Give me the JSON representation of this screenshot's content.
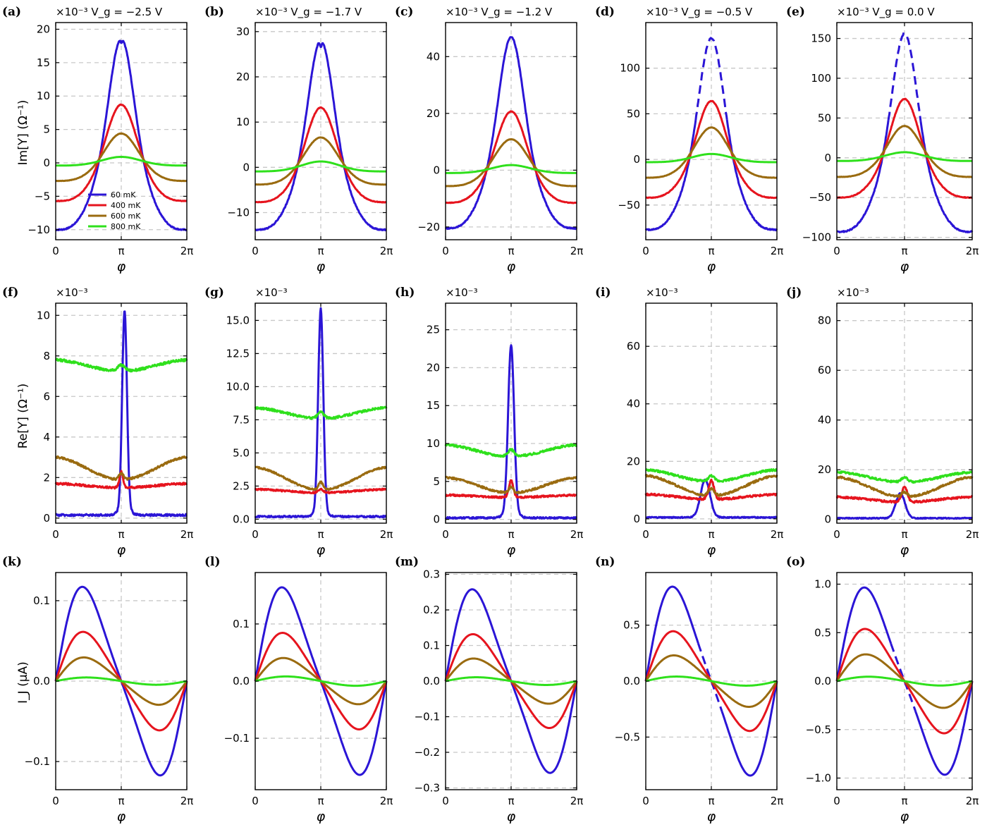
{
  "figure": {
    "row_ylabels": [
      "Im[Y] (Ω⁻¹)",
      "Re[Y] (Ω⁻¹)",
      "I_J (μA)"
    ],
    "multiplier": "×10⁻³"
  },
  "colors": {
    "60 mK": "#2b15d6",
    "400 mK": "#e6141e",
    "600 mK": "#9a6b10",
    "800 mK": "#2fe01c",
    "grid": "#c8c8c8"
  },
  "legend": {
    "entries": [
      "60 mK",
      "400 mK",
      "600 mK",
      "800 mK"
    ]
  },
  "chart_data": [
    {
      "panel": "(a)",
      "row": 0,
      "col": 0,
      "type": "line",
      "note": "×10⁻³ V_g = −2.5 V",
      "vg": "−2.5",
      "ylim": [
        -11.5,
        21
      ],
      "yticks": [
        -10,
        -5,
        0,
        5,
        10,
        15,
        20
      ],
      "ytick_labels": [
        "−10",
        "−5",
        "0",
        "5",
        "10",
        "15",
        "20"
      ],
      "xlim": [
        0,
        6.2832
      ],
      "xticks": [
        "0",
        "π",
        "2π"
      ],
      "xlabel": "φ",
      "ylabel": "Im[Y] (Ω⁻¹)",
      "legend": "lower-left",
      "series": [
        {
          "name": "60 mK",
          "shape": "peak",
          "min": -10,
          "peak": 18.6,
          "width": 0.62,
          "plateau": 0.06,
          "dip": 0.6,
          "dashed": false
        },
        {
          "name": "400 mK",
          "shape": "peak",
          "min": -5.7,
          "peak": 8.7,
          "width": 0.75,
          "plateau": 0.05,
          "dip": 0,
          "dashed": false
        },
        {
          "name": "600 mK",
          "shape": "peak",
          "min": -2.7,
          "peak": 4.4,
          "width": 0.8,
          "plateau": 0.04,
          "dip": 0,
          "dashed": false
        },
        {
          "name": "800 mK",
          "shape": "peak",
          "min": -0.4,
          "peak": 0.9,
          "width": 0.9,
          "plateau": 0.02,
          "dip": 0,
          "dashed": false
        }
      ]
    },
    {
      "panel": "(b)",
      "row": 0,
      "col": 1,
      "type": "line",
      "note": "×10⁻³ V_g = −1.7 V",
      "vg": "−1.7",
      "ylim": [
        -16,
        32
      ],
      "yticks": [
        -10,
        0,
        10,
        20,
        30
      ],
      "ytick_labels": [
        "−10",
        "0",
        "10",
        "20",
        "30"
      ],
      "xlim": [
        0,
        6.2832
      ],
      "xticks": [
        "0",
        "π",
        "2π"
      ],
      "xlabel": "φ",
      "series": [
        {
          "name": "60 mK",
          "shape": "peak",
          "min": -13.8,
          "peak": 28,
          "width": 0.62,
          "plateau": 0.07,
          "dip": 1.5,
          "dashed": false
        },
        {
          "name": "400 mK",
          "shape": "peak",
          "min": -7.7,
          "peak": 13.2,
          "width": 0.72,
          "plateau": 0.04,
          "dip": 0,
          "dashed": false
        },
        {
          "name": "600 mK",
          "shape": "peak",
          "min": -3.8,
          "peak": 6.6,
          "width": 0.8,
          "plateau": 0.04,
          "dip": 0,
          "dashed": false
        },
        {
          "name": "800 mK",
          "shape": "peak",
          "min": -0.9,
          "peak": 1.3,
          "width": 0.9,
          "plateau": 0.02,
          "dip": 0,
          "dashed": false
        }
      ]
    },
    {
      "panel": "(c)",
      "row": 0,
      "col": 2,
      "type": "line",
      "note": "×10⁻³ V_g = −1.2 V",
      "vg": "−1.2",
      "ylim": [
        -24.5,
        52
      ],
      "yticks": [
        -20,
        0,
        20,
        40
      ],
      "ytick_labels": [
        "−20",
        "0",
        "20",
        "40"
      ],
      "xlim": [
        0,
        6.2832
      ],
      "xticks": [
        "0",
        "π",
        "2π"
      ],
      "xlabel": "φ",
      "series": [
        {
          "name": "60 mK",
          "shape": "peak",
          "min": -20.5,
          "peak": 46.8,
          "width": 0.62,
          "plateau": 0.05,
          "dip": 0,
          "dashed": false
        },
        {
          "name": "400 mK",
          "shape": "peak",
          "min": -11.5,
          "peak": 20.7,
          "width": 0.72,
          "plateau": 0.04,
          "dip": 0,
          "dashed": false
        },
        {
          "name": "600 mK",
          "shape": "peak",
          "min": -5.6,
          "peak": 10.9,
          "width": 0.8,
          "plateau": 0.04,
          "dip": 0,
          "dashed": false
        },
        {
          "name": "800 mK",
          "shape": "peak",
          "min": -1,
          "peak": 1.8,
          "width": 0.9,
          "plateau": 0.02,
          "dip": 0,
          "dashed": false
        }
      ]
    },
    {
      "panel": "(d)",
      "row": 0,
      "col": 3,
      "type": "line",
      "note": "×10⁻³ V_g = −0.5 V",
      "vg": "−0.5",
      "ylim": [
        -88,
        150
      ],
      "yticks": [
        -50,
        0,
        50,
        100
      ],
      "ytick_labels": [
        "−50",
        "0",
        "50",
        "100"
      ],
      "xlim": [
        0,
        6.2832
      ],
      "xticks": [
        "0",
        "π",
        "2π"
      ],
      "xlabel": "φ",
      "series": [
        {
          "name": "60 mK",
          "shape": "peak",
          "min": -77,
          "peak": 133,
          "width": 0.62,
          "plateau": 0.02,
          "dip": 0,
          "dashed": true
        },
        {
          "name": "400 mK",
          "shape": "peak",
          "min": -42,
          "peak": 64,
          "width": 0.7,
          "plateau": 0.03,
          "dip": 0,
          "dashed": false
        },
        {
          "name": "600 mK",
          "shape": "peak",
          "min": -20,
          "peak": 35,
          "width": 0.78,
          "plateau": 0.03,
          "dip": 0,
          "dashed": false
        },
        {
          "name": "800 mK",
          "shape": "peak",
          "min": -3,
          "peak": 6,
          "width": 0.9,
          "plateau": 0.02,
          "dip": 0,
          "dashed": false
        }
      ]
    },
    {
      "panel": "(e)",
      "row": 0,
      "col": 4,
      "type": "line",
      "note": "×10⁻³ V_g = 0.0 V",
      "vg": "0.0",
      "ylim": [
        -103,
        170
      ],
      "yticks": [
        -100,
        -50,
        0,
        50,
        100,
        150
      ],
      "ytick_labels": [
        "−100",
        "−50",
        "0",
        "50",
        "100",
        "150"
      ],
      "xlim": [
        0,
        6.2832
      ],
      "xticks": [
        "0",
        "π",
        "2π"
      ],
      "xlabel": "φ",
      "series": [
        {
          "name": "60 mK",
          "shape": "peak",
          "min": -93,
          "peak": 156,
          "width": 0.6,
          "plateau": 0.02,
          "dip": 0,
          "dashed": true
        },
        {
          "name": "400 mK",
          "shape": "peak",
          "min": -50,
          "peak": 74,
          "width": 0.68,
          "plateau": 0.03,
          "dip": 0,
          "dashed": false
        },
        {
          "name": "600 mK",
          "shape": "peak",
          "min": -24,
          "peak": 40,
          "width": 0.76,
          "plateau": 0.03,
          "dip": 0,
          "dashed": false
        },
        {
          "name": "800 mK",
          "shape": "peak",
          "min": -4,
          "peak": 7,
          "width": 0.9,
          "plateau": 0.02,
          "dip": 0,
          "dashed": false
        }
      ]
    },
    {
      "panel": "(f)",
      "row": 1,
      "col": 0,
      "type": "line",
      "note": "×10⁻³",
      "ylim": [
        -0.25,
        10.6
      ],
      "yticks": [
        0,
        2,
        4,
        6,
        8,
        10
      ],
      "ytick_labels": [
        "0",
        "2",
        "4",
        "6",
        "8",
        "10"
      ],
      "xlim": [
        0,
        6.2832
      ],
      "xticks": [
        "0",
        "π",
        "2π"
      ],
      "xlabel": "φ",
      "ylabel": "Re[Y] (Ω⁻¹)",
      "series": [
        {
          "name": "60 mK",
          "shape": "spike",
          "base": 0.15,
          "amp": 9.7,
          "width": 0.16,
          "center": 3.3,
          "broad": 1.0,
          "broad_w": 0.35,
          "noise": 0.05
        },
        {
          "name": "400 mK",
          "shape": "valley",
          "edge": 1.7,
          "mid": 1.5,
          "bump": 0.8,
          "bump_w": 0.12,
          "noise": 0.05
        },
        {
          "name": "600 mK",
          "shape": "valley",
          "edge": 3.0,
          "mid": 1.9,
          "bump": 0.3,
          "bump_w": 0.15,
          "noise": 0.05
        },
        {
          "name": "800 mK",
          "shape": "valley",
          "edge": 7.8,
          "mid": 7.25,
          "bump": 0.3,
          "bump_w": 0.25,
          "noise": 0.06
        }
      ]
    },
    {
      "panel": "(g)",
      "row": 1,
      "col": 1,
      "type": "line",
      "note": "×10⁻³",
      "ylim": [
        -0.3,
        16.3
      ],
      "yticks": [
        0,
        2.5,
        5,
        7.5,
        10,
        12.5,
        15
      ],
      "ytick_labels": [
        "0.0",
        "2.5",
        "5.0",
        "7.5",
        "10.0",
        "12.5",
        "15.0"
      ],
      "xlim": [
        0,
        6.2832
      ],
      "xticks": [
        "0",
        "π",
        "2π"
      ],
      "xlabel": "φ",
      "series": [
        {
          "name": "60 mK",
          "shape": "spike",
          "base": 0.2,
          "amp": 15.2,
          "width": 0.17,
          "center": 3.14,
          "broad": 1.3,
          "broad_w": 0.35,
          "noise": 0.06
        },
        {
          "name": "400 mK",
          "shape": "valley",
          "edge": 2.25,
          "mid": 2.0,
          "bump": 0.3,
          "bump_w": 0.15,
          "noise": 0.06
        },
        {
          "name": "600 mK",
          "shape": "valley",
          "edge": 3.9,
          "mid": 2.2,
          "bump": 0.6,
          "bump_w": 0.15,
          "noise": 0.06
        },
        {
          "name": "800 mK",
          "shape": "valley",
          "edge": 8.4,
          "mid": 7.6,
          "bump": 0.5,
          "bump_w": 0.2,
          "noise": 0.08
        }
      ]
    },
    {
      "panel": "(h)",
      "row": 1,
      "col": 2,
      "type": "line",
      "note": "×10⁻³",
      "ylim": [
        -0.5,
        28.5
      ],
      "yticks": [
        0,
        5,
        10,
        15,
        20,
        25
      ],
      "ytick_labels": [
        "0",
        "5",
        "10",
        "15",
        "20",
        "25"
      ],
      "xlim": [
        0,
        6.2832
      ],
      "xticks": [
        "0",
        "π",
        "2π"
      ],
      "xlabel": "φ",
      "series": [
        {
          "name": "60 mK",
          "shape": "spike",
          "base": 0.2,
          "amp": 21.8,
          "width": 0.2,
          "center": 3.14,
          "broad": 2.5,
          "broad_w": 0.4,
          "noise": 0.1
        },
        {
          "name": "400 mK",
          "shape": "valley",
          "edge": 3.2,
          "mid": 2.9,
          "bump": 2.2,
          "bump_w": 0.15,
          "noise": 0.12
        },
        {
          "name": "600 mK",
          "shape": "valley",
          "edge": 5.5,
          "mid": 3.5,
          "bump": 0.8,
          "bump_w": 0.15,
          "noise": 0.12
        },
        {
          "name": "800 mK",
          "shape": "valley",
          "edge": 9.8,
          "mid": 8.3,
          "bump": 0.9,
          "bump_w": 0.2,
          "noise": 0.14
        }
      ]
    },
    {
      "panel": "(i)",
      "row": 1,
      "col": 3,
      "type": "line",
      "note": "×10⁻³",
      "ylim": [
        -1.5,
        75
      ],
      "yticks": [
        0,
        20,
        40,
        60
      ],
      "ytick_labels": [
        "0",
        "20",
        "40",
        "60"
      ],
      "xlim": [
        0,
        6.2832
      ],
      "xticks": [
        "0",
        "π",
        "2π"
      ],
      "xlabel": "φ",
      "series": [
        {
          "name": "60 mK",
          "shape": "spike",
          "base": 0.5,
          "amp": 13,
          "width": 0.32,
          "center": 2.85,
          "broad": 0,
          "broad_w": 0.4,
          "noise": 0.2
        },
        {
          "name": "400 mK",
          "shape": "valley",
          "edge": 8.5,
          "mid": 6.8,
          "bump": 6.5,
          "bump_w": 0.18,
          "noise": 0.35
        },
        {
          "name": "600 mK",
          "shape": "valley",
          "edge": 15,
          "mid": 8,
          "bump": 2.5,
          "bump_w": 0.2,
          "noise": 0.35
        },
        {
          "name": "800 mK",
          "shape": "valley",
          "edge": 17,
          "mid": 13,
          "bump": 2,
          "bump_w": 0.2,
          "noise": 0.35
        }
      ]
    },
    {
      "panel": "(j)",
      "row": 1,
      "col": 4,
      "type": "line",
      "note": "×10⁻³",
      "ylim": [
        -1.5,
        87
      ],
      "yticks": [
        0,
        20,
        40,
        60,
        80
      ],
      "ytick_labels": [
        "0",
        "20",
        "40",
        "60",
        "80"
      ],
      "xlim": [
        0,
        6.2832
      ],
      "xticks": [
        "0",
        "π",
        "2π"
      ],
      "xlabel": "φ",
      "series": [
        {
          "name": "60 mK",
          "shape": "spike",
          "base": 0.5,
          "amp": 10,
          "width": 0.3,
          "center": 2.95,
          "broad": 0,
          "broad_w": 0.4,
          "noise": 0.2
        },
        {
          "name": "400 mK",
          "shape": "valley",
          "edge": 9,
          "mid": 7,
          "bump": 6,
          "bump_w": 0.18,
          "noise": 0.4
        },
        {
          "name": "600 mK",
          "shape": "valley",
          "edge": 17,
          "mid": 9,
          "bump": 2,
          "bump_w": 0.2,
          "noise": 0.4
        },
        {
          "name": "800 mK",
          "shape": "valley",
          "edge": 19,
          "mid": 15,
          "bump": 2,
          "bump_w": 0.2,
          "noise": 0.4
        }
      ]
    },
    {
      "panel": "(k)",
      "row": 2,
      "col": 0,
      "type": "line",
      "ylim": [
        -0.135,
        0.135
      ],
      "yticks": [
        -0.1,
        0,
        0.1
      ],
      "ytick_labels": [
        "−0.1",
        "0.0",
        "0.1"
      ],
      "xlim": [
        0,
        6.2832
      ],
      "xticks": [
        "0",
        "π",
        "2π"
      ],
      "xlabel": "φ",
      "ylabel": "I_J (μA)",
      "series": [
        {
          "name": "60 mK",
          "shape": "skew",
          "amp": 0.125,
          "skew": 0.35,
          "dashed": false
        },
        {
          "name": "400 mK",
          "shape": "skew",
          "amp": 0.066,
          "skew": 0.3,
          "dashed": false
        },
        {
          "name": "600 mK",
          "shape": "skew",
          "amp": 0.032,
          "skew": 0.25,
          "dashed": false
        },
        {
          "name": "800 mK",
          "shape": "skew",
          "amp": 0.005,
          "skew": 0.1,
          "dashed": false
        }
      ]
    },
    {
      "panel": "(l)",
      "row": 2,
      "col": 1,
      "type": "line",
      "ylim": [
        -0.19,
        0.19
      ],
      "yticks": [
        -0.1,
        0,
        0.1
      ],
      "ytick_labels": [
        "−0.1",
        "0.0",
        "0.1"
      ],
      "xlim": [
        0,
        6.2832
      ],
      "xticks": [
        "0",
        "π",
        "2π"
      ],
      "xlabel": "φ",
      "series": [
        {
          "name": "60 mK",
          "shape": "skew",
          "amp": 0.175,
          "skew": 0.35,
          "dashed": false
        },
        {
          "name": "400 mK",
          "shape": "skew",
          "amp": 0.091,
          "skew": 0.3,
          "dashed": false
        },
        {
          "name": "600 mK",
          "shape": "skew",
          "amp": 0.044,
          "skew": 0.25,
          "dashed": false
        },
        {
          "name": "800 mK",
          "shape": "skew",
          "amp": 0.009,
          "skew": 0.1,
          "dashed": false
        }
      ]
    },
    {
      "panel": "(m)",
      "row": 2,
      "col": 2,
      "type": "line",
      "ylim": [
        -0.305,
        0.305
      ],
      "yticks": [
        -0.3,
        -0.2,
        -0.1,
        0,
        0.1,
        0.2,
        0.3
      ],
      "ytick_labels": [
        "−0.3",
        "−0.2",
        "−0.1",
        "0.0",
        "0.1",
        "0.2",
        "0.3"
      ],
      "xlim": [
        0,
        6.2832
      ],
      "xticks": [
        "0",
        "π",
        "2π"
      ],
      "xlabel": "φ",
      "series": [
        {
          "name": "60 mK",
          "shape": "skew",
          "amp": 0.275,
          "skew": 0.35,
          "dashed": false
        },
        {
          "name": "400 mK",
          "shape": "skew",
          "amp": 0.142,
          "skew": 0.3,
          "dashed": false
        },
        {
          "name": "600 mK",
          "shape": "skew",
          "amp": 0.069,
          "skew": 0.25,
          "dashed": false
        },
        {
          "name": "800 mK",
          "shape": "skew",
          "amp": 0.012,
          "skew": 0.1,
          "dashed": false
        }
      ]
    },
    {
      "panel": "(n)",
      "row": 2,
      "col": 3,
      "type": "line",
      "ylim": [
        -0.97,
        0.97
      ],
      "yticks": [
        -0.5,
        0,
        0.5
      ],
      "ytick_labels": [
        "−0.5",
        "0.0",
        "0.5"
      ],
      "xlim": [
        0,
        6.2832
      ],
      "xticks": [
        "0",
        "π",
        "2π"
      ],
      "xlabel": "φ",
      "series": [
        {
          "name": "60 mK",
          "shape": "skew",
          "amp": 0.9,
          "skew": 0.35,
          "dashed": true
        },
        {
          "name": "400 mK",
          "shape": "skew",
          "amp": 0.48,
          "skew": 0.3,
          "dashed": false
        },
        {
          "name": "600 mK",
          "shape": "skew",
          "amp": 0.25,
          "skew": 0.25,
          "dashed": false
        },
        {
          "name": "800 mK",
          "shape": "skew",
          "amp": 0.045,
          "skew": 0.1,
          "dashed": false
        }
      ]
    },
    {
      "panel": "(o)",
      "row": 2,
      "col": 4,
      "type": "line",
      "ylim": [
        -1.12,
        1.12
      ],
      "yticks": [
        -1,
        -0.5,
        0,
        0.5,
        1
      ],
      "ytick_labels": [
        "−1.0",
        "−0.5",
        "0.0",
        "0.5",
        "1.0"
      ],
      "xlim": [
        0,
        6.2832
      ],
      "xticks": [
        "0",
        "π",
        "2π"
      ],
      "xlabel": "φ",
      "series": [
        {
          "name": "60 mK",
          "shape": "skew",
          "amp": 1.03,
          "skew": 0.35,
          "dashed": true
        },
        {
          "name": "400 mK",
          "shape": "skew",
          "amp": 0.58,
          "skew": 0.3,
          "dashed": false
        },
        {
          "name": "600 mK",
          "shape": "skew",
          "amp": 0.3,
          "skew": 0.25,
          "dashed": false
        },
        {
          "name": "800 mK",
          "shape": "skew",
          "amp": 0.05,
          "skew": 0.1,
          "dashed": false
        }
      ]
    }
  ]
}
